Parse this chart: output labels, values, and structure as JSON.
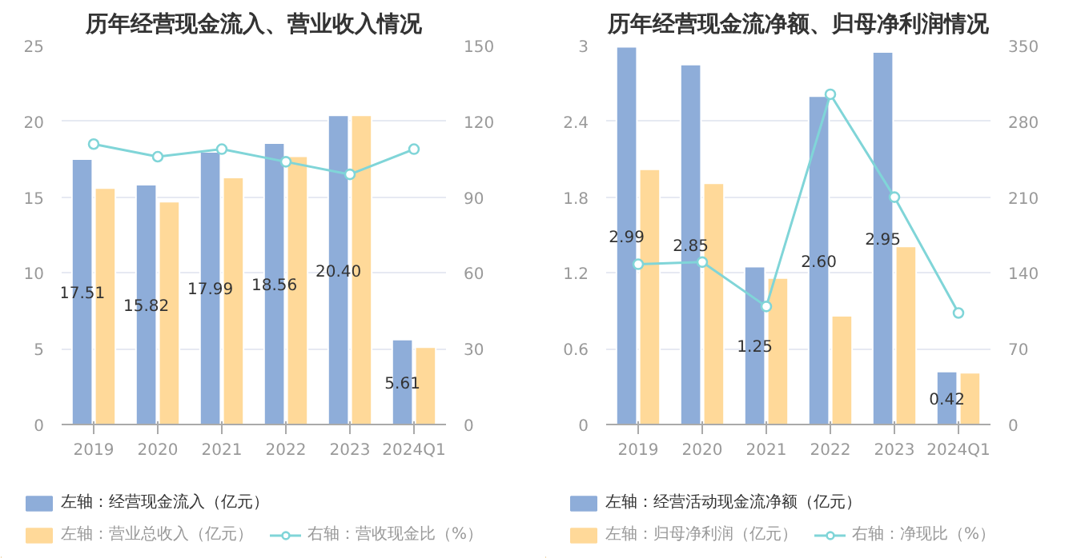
{
  "chart_data": [
    {
      "type": "bar",
      "title": "历年经营现金流入、营业收入情况",
      "categories": [
        "2019",
        "2020",
        "2021",
        "2022",
        "2023",
        "2024Q1"
      ],
      "ylim": [
        0,
        25
      ],
      "yticks": [
        0,
        5,
        10,
        15,
        20,
        25
      ],
      "y2lim": [
        0,
        150
      ],
      "y2ticks": [
        0,
        30,
        60,
        90,
        120,
        150
      ],
      "grid": "y",
      "legend": "bottom",
      "marker": "circle",
      "series": [
        {
          "name": "左轴：经营现金流入（亿元）",
          "color": "#8eadd9",
          "values": [
            17.51,
            15.82,
            17.99,
            18.56,
            20.4,
            5.61
          ],
          "value_labels": [
            "17.51",
            "15.82",
            "17.99",
            "18.56",
            "20.40",
            "5.61"
          ]
        },
        {
          "name": "左轴：营业总收入（亿元）",
          "color": "#ffd999",
          "values": [
            15.6,
            14.7,
            16.3,
            17.7,
            20.4,
            5.1
          ]
        },
        {
          "name": "右轴：营收现金比（%）",
          "color": "#80d5d8",
          "type": "line",
          "axis": "y2",
          "values": [
            111,
            106,
            109,
            104,
            99,
            109
          ]
        }
      ]
    },
    {
      "type": "bar",
      "title": "历年经营现金流净额、归母净利润情况",
      "categories": [
        "2019",
        "2020",
        "2021",
        "2022",
        "2023",
        "2024Q1"
      ],
      "ylim": [
        0,
        3
      ],
      "yticks": [
        0,
        0.6,
        1.2,
        1.8,
        2.4,
        3
      ],
      "y2lim": [
        0,
        350
      ],
      "y2ticks": [
        0,
        70,
        140,
        210,
        280,
        350
      ],
      "grid": "y",
      "legend": "bottom",
      "marker": "circle",
      "series": [
        {
          "name": "左轴：经营活动现金流净额（亿元）",
          "color": "#8eadd9",
          "values": [
            2.99,
            2.85,
            1.25,
            2.6,
            2.95,
            0.42
          ],
          "value_labels": [
            "2.99",
            "2.85",
            "1.25",
            "2.60",
            "2.95",
            "0.42"
          ]
        },
        {
          "name": "左轴：归母净利润（亿元）",
          "color": "#ffd999",
          "values": [
            2.02,
            1.91,
            1.16,
            0.86,
            1.41,
            0.41
          ]
        },
        {
          "name": "右轴：净现比（%）",
          "color": "#80d5d8",
          "type": "line",
          "axis": "y2",
          "values": [
            148,
            150,
            109,
            305,
            210,
            103
          ]
        }
      ]
    }
  ]
}
